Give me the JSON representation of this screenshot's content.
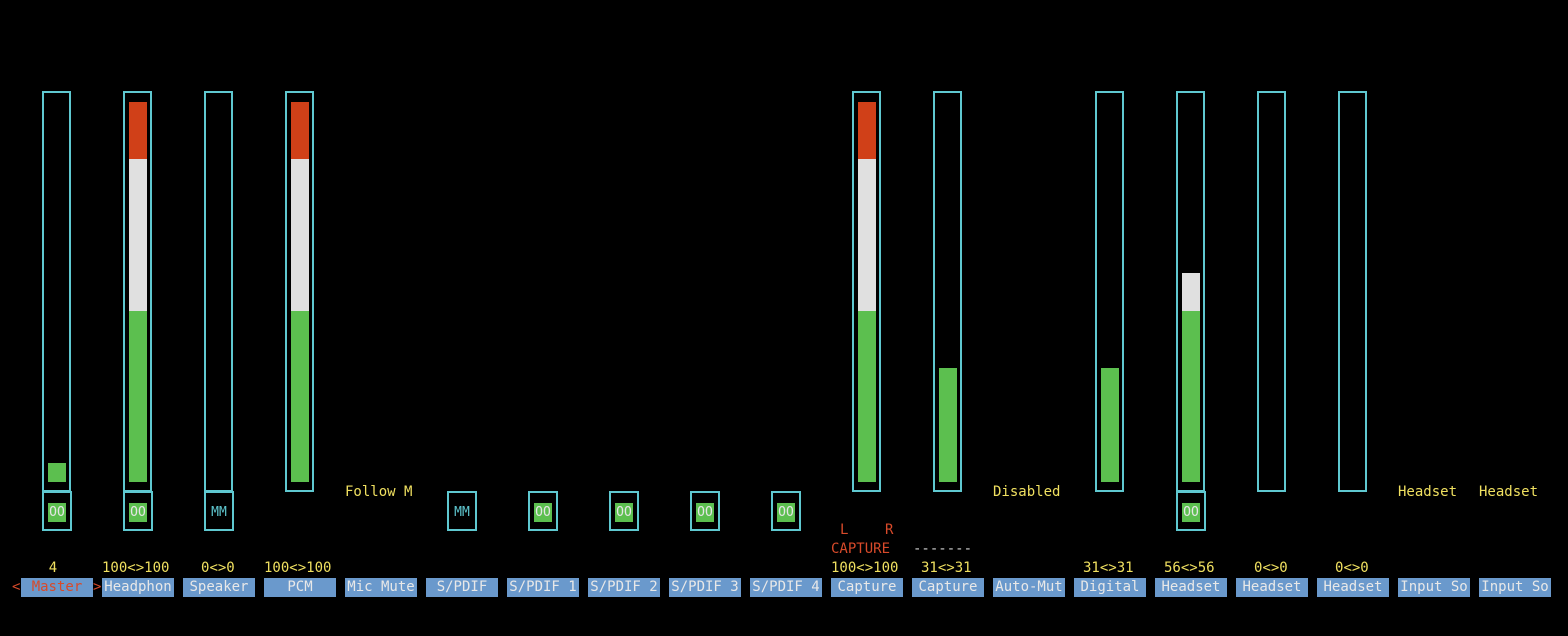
{
  "colors": {
    "background": "#000000",
    "frame": "#5fc8d0",
    "low": "#5cbf4f",
    "mid": "#e0e0e0",
    "high": "#d04018",
    "label_bg": "#6a99cc",
    "value_text": "#f0e060",
    "selected_text": "#d84a2a"
  },
  "controls": [
    {
      "label": "Master",
      "value": "4",
      "level": 0.05,
      "mute": "OO",
      "selected": true
    },
    {
      "label": "Headphon",
      "value_left": "100",
      "value_right": "100",
      "level": 1.0,
      "mute": "OO"
    },
    {
      "label": "Speaker",
      "value_left": "0",
      "value_right": "0",
      "level": 0.0,
      "mute": "MM"
    },
    {
      "label": "PCM",
      "value_left": "100",
      "value_right": "100",
      "level": 1.0
    },
    {
      "label": "Mic Mute",
      "enum_value": "Follow M"
    },
    {
      "label": "S/PDIF",
      "mute": "MM"
    },
    {
      "label": "S/PDIF 1",
      "mute": "OO"
    },
    {
      "label": "S/PDIF 2",
      "mute": "OO"
    },
    {
      "label": "S/PDIF 3",
      "mute": "OO"
    },
    {
      "label": "S/PDIF 4",
      "mute": "OO"
    },
    {
      "label": "Capture",
      "value_left": "100",
      "value_right": "100",
      "level": 1.0,
      "capture_indicator": "CAPTURE",
      "capture_l": "L",
      "capture_r": "R"
    },
    {
      "label": "Capture",
      "value_left": "31",
      "value_right": "31",
      "level": 0.3,
      "capture_indicator": "-------"
    },
    {
      "label": "Auto-Mut",
      "enum_value": "Disabled"
    },
    {
      "label": "Digital",
      "value_left": "31",
      "value_right": "31",
      "level": 0.3
    },
    {
      "label": "Headset",
      "value_left": "56",
      "value_right": "56",
      "level": 0.56,
      "mute": "OO"
    },
    {
      "label": "Headset",
      "value_left": "0",
      "value_right": "0",
      "level": 0.0
    },
    {
      "label": "Headset",
      "value_left": "0",
      "value_right": "0",
      "level": 0.0
    },
    {
      "label": "Input So",
      "enum_value": "Headset"
    },
    {
      "label": "Input So",
      "enum_value": "Headset"
    }
  ],
  "separator": "<>",
  "cursor_left": "<",
  "cursor_right": ">"
}
